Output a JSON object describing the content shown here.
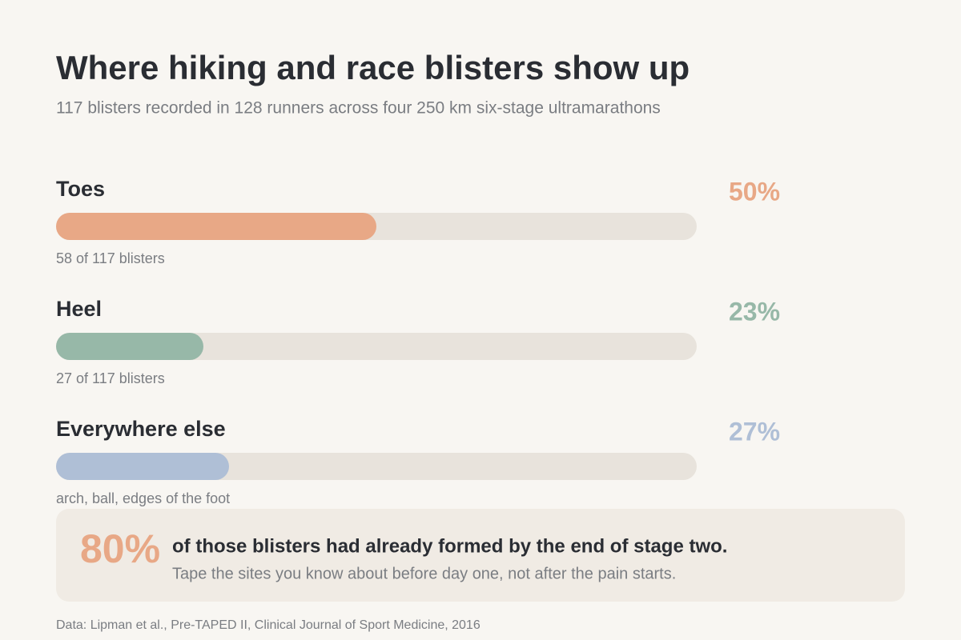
{
  "chart_data": {
    "type": "bar",
    "title": "Where hiking and race blisters show up",
    "subtitle": "117 blisters recorded in 128 runners across four 250 km six-stage ultramarathons",
    "categories": [
      "Toes",
      "Heel",
      "Everywhere else"
    ],
    "values": [
      50,
      23,
      27
    ],
    "value_labels": [
      "50%",
      "23%",
      "27%"
    ],
    "notes": [
      "58 of 117 blisters",
      "27 of 117 blisters",
      "arch, ball, edges of the foot"
    ],
    "colors": [
      "#e8a886",
      "#97b8a8",
      "#afbfd6"
    ],
    "xlim": [
      0,
      100
    ]
  },
  "callout": {
    "figure": "80%",
    "headline": "of those blisters had already formed by the end of stage two.",
    "text": "Tape the sites you know about before day one, not after the pain starts."
  },
  "source": "Data: Lipman et al., Pre-TAPED II, Clinical Journal of Sport Medicine, 2016"
}
